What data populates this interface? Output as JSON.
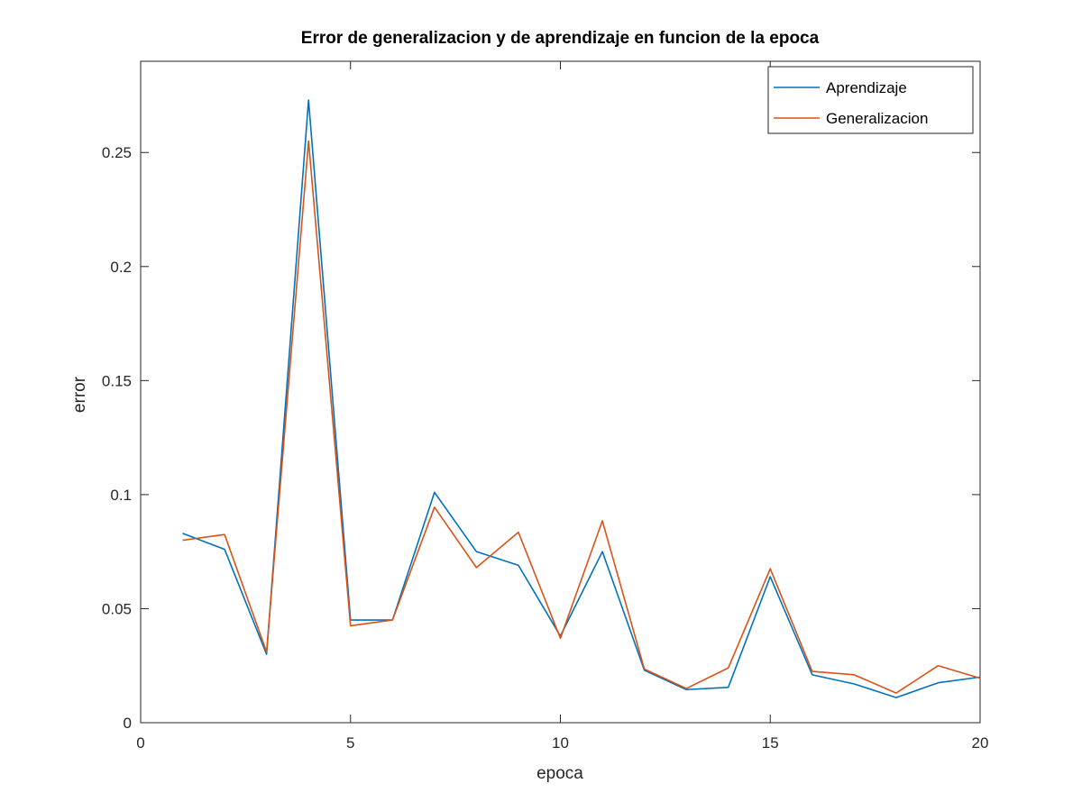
{
  "chart_data": {
    "type": "line",
    "title": "Error de generalizacion y de aprendizaje en funcion de la epoca",
    "xlabel": "epoca",
    "ylabel": "error",
    "xlim": [
      0,
      20
    ],
    "ylim": [
      0,
      0.29
    ],
    "xticks": [
      0,
      5,
      10,
      15,
      20
    ],
    "xtick_labels": [
      "0",
      "5",
      "10",
      "15",
      "20"
    ],
    "yticks": [
      0,
      0.05,
      0.1,
      0.15,
      0.2,
      0.25
    ],
    "ytick_labels": [
      "0",
      "0.05",
      "0.1",
      "0.15",
      "0.2",
      "0.25"
    ],
    "grid": false,
    "legend_position": "top-right",
    "x": [
      1,
      2,
      3,
      4,
      5,
      6,
      7,
      8,
      9,
      10,
      11,
      12,
      13,
      14,
      15,
      16,
      17,
      18,
      19,
      20
    ],
    "series": [
      {
        "name": "Aprendizaje",
        "color": "#0072BD",
        "values": [
          0.083,
          0.076,
          0.03,
          0.273,
          0.045,
          0.045,
          0.101,
          0.075,
          0.069,
          0.038,
          0.075,
          0.023,
          0.0145,
          0.0155,
          0.064,
          0.021,
          0.017,
          0.011,
          0.0175,
          0.02
        ]
      },
      {
        "name": "Generalizacion",
        "color": "#D95319",
        "values": [
          0.08,
          0.0825,
          0.031,
          0.255,
          0.0425,
          0.045,
          0.0945,
          0.068,
          0.0835,
          0.037,
          0.0885,
          0.0235,
          0.015,
          0.024,
          0.0675,
          0.0225,
          0.021,
          0.013,
          0.025,
          0.0195
        ]
      }
    ]
  }
}
